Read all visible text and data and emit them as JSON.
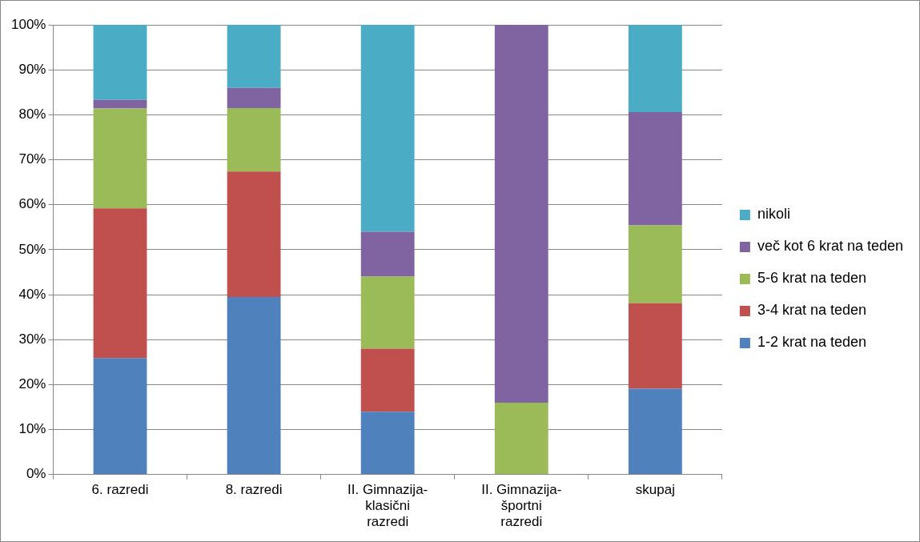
{
  "chart_data": {
    "type": "bar",
    "stacked": true,
    "categories": [
      "6. razredi",
      "8. razredi",
      "II. Gimnazija-klasični razredi",
      "II. Gimnazija-športni razredi",
      "skupaj"
    ],
    "series": [
      {
        "name": "1-2 krat na teden",
        "color": "#4f81bd",
        "values": [
          25.9,
          39.5,
          14,
          0,
          19.1
        ]
      },
      {
        "name": "3-4 krat na teden",
        "color": "#c0504d",
        "values": [
          33.3,
          27.9,
          14,
          0,
          19
        ]
      },
      {
        "name": "5-6 krat na teden",
        "color": "#9bbb59",
        "values": [
          22.2,
          14.1,
          16,
          16,
          17.3
        ]
      },
      {
        "name": "več kot 6 krat na teden",
        "color": "#8064a2",
        "values": [
          1.9,
          4.5,
          10,
          84,
          25.2
        ]
      },
      {
        "name": "nikoli",
        "color": "#4bacc6",
        "values": [
          16.7,
          14,
          46,
          0,
          19.4
        ]
      }
    ],
    "ylim": [
      0,
      100
    ],
    "yticks": [
      {
        "value": 0,
        "label": "0%"
      },
      {
        "value": 10,
        "label": "10%"
      },
      {
        "value": 20,
        "label": "20%"
      },
      {
        "value": 30,
        "label": "30%"
      },
      {
        "value": 40,
        "label": "40%"
      },
      {
        "value": 50,
        "label": "50%"
      },
      {
        "value": 60,
        "label": "60%"
      },
      {
        "value": 70,
        "label": "70%"
      },
      {
        "value": 80,
        "label": "80%"
      },
      {
        "value": 90,
        "label": "90%"
      },
      {
        "value": 100,
        "label": "100%"
      }
    ],
    "grid": "y",
    "legend": "right"
  }
}
